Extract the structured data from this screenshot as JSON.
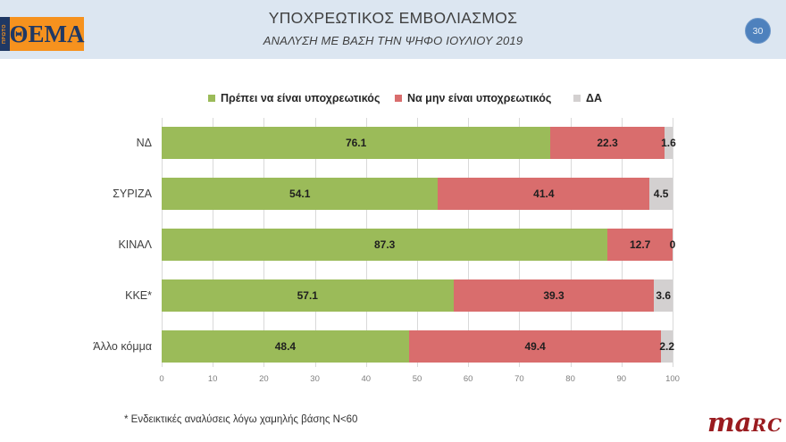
{
  "header": {
    "title": "ΥΠΟΧΡΕΩΤΙΚΟΣ ΕΜΒΟΛΙΑΣΜΟΣ",
    "subtitle": "ΑΝΑΛΥΣΗ ΜΕ ΒΑΣΗ ΤΗΝ ΨΗΦΟ ΙΟΥΛΙΟΥ 2019",
    "slide_number": "30",
    "logo": {
      "brand": "ΘΕΜΑ",
      "vertical": "ΠΡΩΤΟ"
    }
  },
  "chart_data": {
    "type": "bar",
    "orientation": "horizontal",
    "stacked": true,
    "categories": [
      "ΝΔ",
      "ΣΥΡΙΖΑ",
      "ΚΙΝΑΛ",
      "ΚΚΕ*",
      "Άλλο κόμμα"
    ],
    "series": [
      {
        "name": "Πρέπει να είναι υποχρεωτικός",
        "color": "#9BBB59",
        "values": [
          76.1,
          54.1,
          87.3,
          57.1,
          48.4
        ]
      },
      {
        "name": "Να μην είναι υποχρεωτικός",
        "color": "#D96D6D",
        "values": [
          22.3,
          41.4,
          12.7,
          39.3,
          49.4
        ]
      },
      {
        "name": "ΔΑ",
        "color": "#D3D0D0",
        "values": [
          1.6,
          4.5,
          0,
          3.6,
          2.2
        ]
      }
    ],
    "xlim": [
      0,
      100
    ],
    "x_ticks": [
      0,
      10,
      20,
      30,
      40,
      50,
      60,
      70,
      80,
      90,
      100
    ],
    "grid": true,
    "legend_position": "top"
  },
  "footnote": "* Ενδεικτικές αναλύσεις λόγω χαμηλής βάσης N<60",
  "brand_footer": {
    "part1": "ma",
    "part2": "RC"
  }
}
